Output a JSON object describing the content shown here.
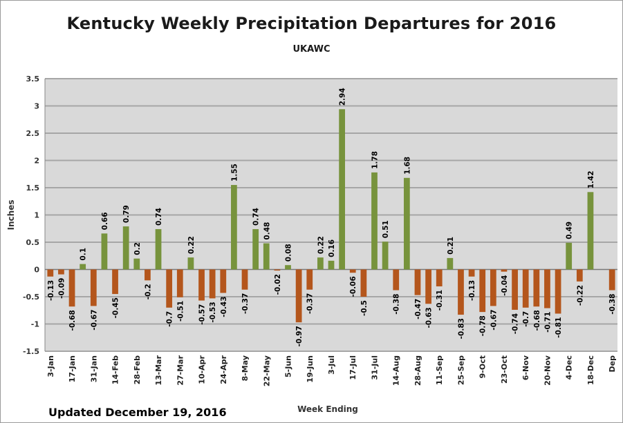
{
  "title": "Kentucky Weekly Precipitation Departures for 2016",
  "subtitle": "UKAWC",
  "footnote": "Updated December 19, 2016",
  "colors": {
    "positive": "#77933c",
    "negative": "#b4561c",
    "plot_background": "#d9d9d9",
    "gridline": "#a6a6a6"
  },
  "chart_data": {
    "type": "bar",
    "xlabel": "Week Ending",
    "ylabel": "Inches",
    "ylim": [
      -1.5,
      3.5
    ],
    "yticks": [
      -1.5,
      -1,
      -0.5,
      0,
      0.5,
      1,
      1.5,
      2,
      2.5,
      3,
      3.5
    ],
    "grid": true,
    "values": [
      -0.13,
      -0.09,
      -0.68,
      0.1,
      -0.67,
      0.66,
      -0.45,
      0.79,
      0.2,
      -0.2,
      0.74,
      -0.7,
      -0.51,
      0.22,
      -0.57,
      -0.53,
      -0.43,
      1.55,
      -0.37,
      0.74,
      0.48,
      -0.02,
      0.08,
      -0.97,
      -0.37,
      0.22,
      0.16,
      2.94,
      -0.06,
      -0.5,
      1.78,
      0.51,
      -0.38,
      1.68,
      -0.47,
      -0.63,
      -0.31,
      0.21,
      -0.83,
      -0.13,
      -0.78,
      -0.67,
      -0.04,
      -0.74,
      -0.7,
      -0.68,
      -0.71,
      -0.81,
      0.49,
      -0.22,
      1.42,
      null,
      -0.38
    ],
    "category_labels": [
      "3-Jan",
      "17-Jan",
      "31-Jan",
      "14-Feb",
      "28-Feb",
      "13-Mar",
      "27-Mar",
      "10-Apr",
      "24-Apr",
      "8-May",
      "22-May",
      "5-Jun",
      "19-Jun",
      "3-Jul",
      "17-Jul",
      "31-Jul",
      "14-Aug",
      "28-Aug",
      "11-Sep",
      "25-Sep",
      "9-Oct",
      "23-Oct",
      "6-Nov",
      "20-Nov",
      "4-Dec",
      "18-Dec",
      "Dep"
    ],
    "label_every": 2
  }
}
